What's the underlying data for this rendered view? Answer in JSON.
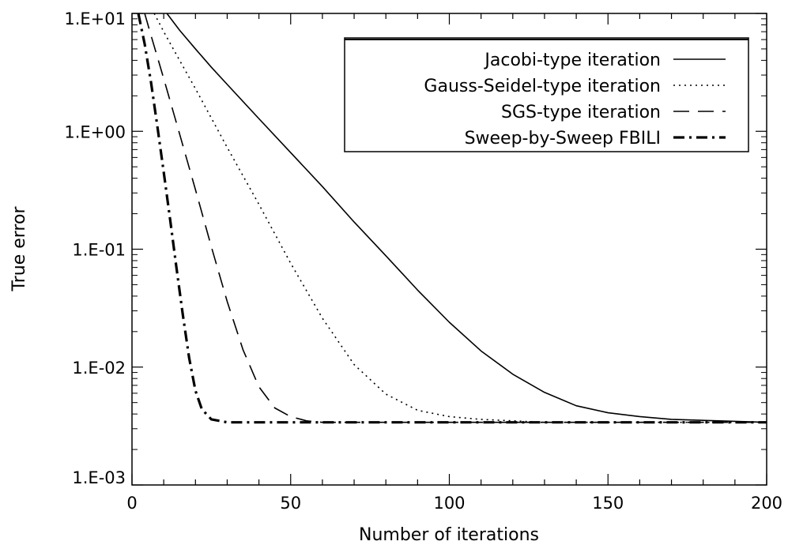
{
  "chart_data": {
    "type": "line",
    "xlabel": "Number of iterations",
    "ylabel": "True error",
    "xlim": [
      0,
      200
    ],
    "ylim": [
      0.001,
      10
    ],
    "yscale": "log",
    "x_ticks": [
      "0",
      "50",
      "100",
      "150",
      "200"
    ],
    "y_ticks": [
      "1.E-03",
      "1.E-02",
      "1.E-01",
      "1.E+00",
      "1.E+01"
    ],
    "grid": false,
    "legend_position": "top-right",
    "series": [
      {
        "name": "Jacobi-type iteration",
        "style": "solid",
        "points": [
          [
            11,
            10
          ],
          [
            15,
            7.2
          ],
          [
            20,
            5.0
          ],
          [
            25,
            3.5
          ],
          [
            30,
            2.5
          ],
          [
            40,
            1.28
          ],
          [
            50,
            0.66
          ],
          [
            60,
            0.34
          ],
          [
            70,
            0.17
          ],
          [
            80,
            0.088
          ],
          [
            90,
            0.045
          ],
          [
            100,
            0.024
          ],
          [
            110,
            0.0137
          ],
          [
            120,
            0.0087
          ],
          [
            130,
            0.0061
          ],
          [
            140,
            0.0047
          ],
          [
            150,
            0.0041
          ],
          [
            160,
            0.0038
          ],
          [
            170,
            0.0036
          ],
          [
            185,
            0.0035
          ],
          [
            200,
            0.0034
          ]
        ]
      },
      {
        "name": "Gauss-Seidel-type iteration",
        "style": "dotted",
        "points": [
          [
            7,
            10
          ],
          [
            10,
            7.0
          ],
          [
            15,
            4.0
          ],
          [
            20,
            2.3
          ],
          [
            30,
            0.73
          ],
          [
            40,
            0.24
          ],
          [
            50,
            0.076
          ],
          [
            60,
            0.026
          ],
          [
            70,
            0.0105
          ],
          [
            80,
            0.0059
          ],
          [
            90,
            0.0043
          ],
          [
            100,
            0.0038
          ],
          [
            110,
            0.0036
          ],
          [
            120,
            0.0035
          ],
          [
            130,
            0.0034
          ],
          [
            200,
            0.0034
          ]
        ]
      },
      {
        "name": "SGS-type iteration",
        "style": "dashed",
        "points": [
          [
            4,
            10
          ],
          [
            6,
            6.5
          ],
          [
            10,
            2.8
          ],
          [
            15,
            0.95
          ],
          [
            20,
            0.32
          ],
          [
            25,
            0.105
          ],
          [
            30,
            0.036
          ],
          [
            35,
            0.014
          ],
          [
            40,
            0.0068
          ],
          [
            45,
            0.0045
          ],
          [
            50,
            0.0038
          ],
          [
            55,
            0.0035
          ],
          [
            60,
            0.0034
          ],
          [
            200,
            0.0034
          ]
        ]
      },
      {
        "name": "Sweep-by-Sweep FBILI",
        "style": "dash-dot",
        "points": [
          [
            2,
            10
          ],
          [
            4,
            5.5
          ],
          [
            6,
            2.6
          ],
          [
            8,
            1.1
          ],
          [
            10,
            0.45
          ],
          [
            12,
            0.18
          ],
          [
            14,
            0.07
          ],
          [
            16,
            0.028
          ],
          [
            18,
            0.012
          ],
          [
            20,
            0.0063
          ],
          [
            22,
            0.0044
          ],
          [
            25,
            0.0036
          ],
          [
            30,
            0.0034
          ],
          [
            200,
            0.0034
          ]
        ]
      }
    ]
  }
}
